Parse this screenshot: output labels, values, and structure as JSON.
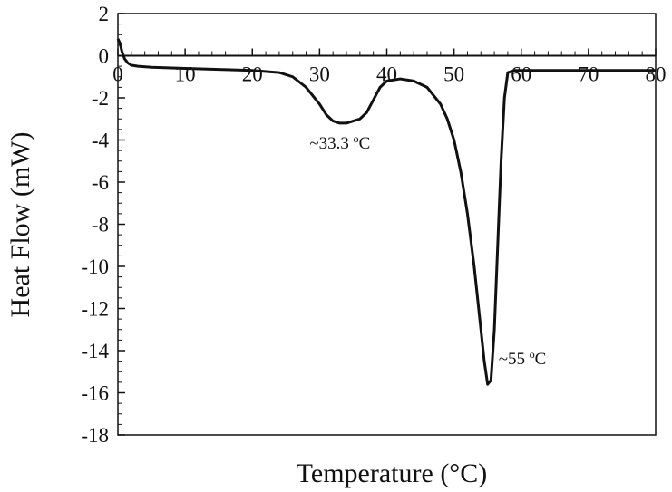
{
  "chart_data": {
    "type": "line",
    "title": "",
    "xlabel": "Temperature (°C)",
    "ylabel": "Heat Flow (mW)",
    "xlim": [
      0,
      80
    ],
    "ylim": [
      -18,
      2
    ],
    "xticks": [
      0,
      10,
      20,
      30,
      40,
      50,
      60,
      70,
      80
    ],
    "yticks": [
      2,
      0,
      -2,
      -4,
      -6,
      -8,
      -10,
      -12,
      -14,
      -16,
      -18
    ],
    "grid": false,
    "series": [
      {
        "x": [
          0,
          0.3,
          0.6,
          1,
          1.5,
          2,
          3,
          5,
          10,
          15,
          20,
          24,
          26,
          28,
          30,
          31,
          32,
          33,
          33.3,
          34,
          35,
          36,
          37,
          38,
          39,
          40,
          42,
          44,
          46,
          48,
          49,
          50,
          51,
          52,
          53,
          54,
          54.5,
          55,
          55.5,
          56,
          56.5,
          57,
          57.5,
          58,
          59,
          60,
          65,
          70,
          75,
          80
        ],
        "y": [
          0.8,
          0.6,
          0.2,
          -0.15,
          -0.35,
          -0.45,
          -0.5,
          -0.55,
          -0.6,
          -0.65,
          -0.7,
          -0.8,
          -1.0,
          -1.5,
          -2.3,
          -2.8,
          -3.1,
          -3.2,
          -3.2,
          -3.2,
          -3.1,
          -3.0,
          -2.7,
          -2.1,
          -1.5,
          -1.2,
          -1.1,
          -1.2,
          -1.5,
          -2.3,
          -3.0,
          -4.0,
          -5.5,
          -7.5,
          -10.0,
          -13.0,
          -14.5,
          -15.6,
          -15.4,
          -13.0,
          -9.0,
          -5.0,
          -2.0,
          -0.8,
          -0.7,
          -0.7,
          -0.7,
          -0.7,
          -0.7,
          -0.7
        ]
      }
    ],
    "annotations": [
      {
        "text": "~33.3 ºC",
        "x": 33.3,
        "y": -3.2
      },
      {
        "text": "~55 ºC",
        "x": 55,
        "y": -15.6
      }
    ]
  }
}
